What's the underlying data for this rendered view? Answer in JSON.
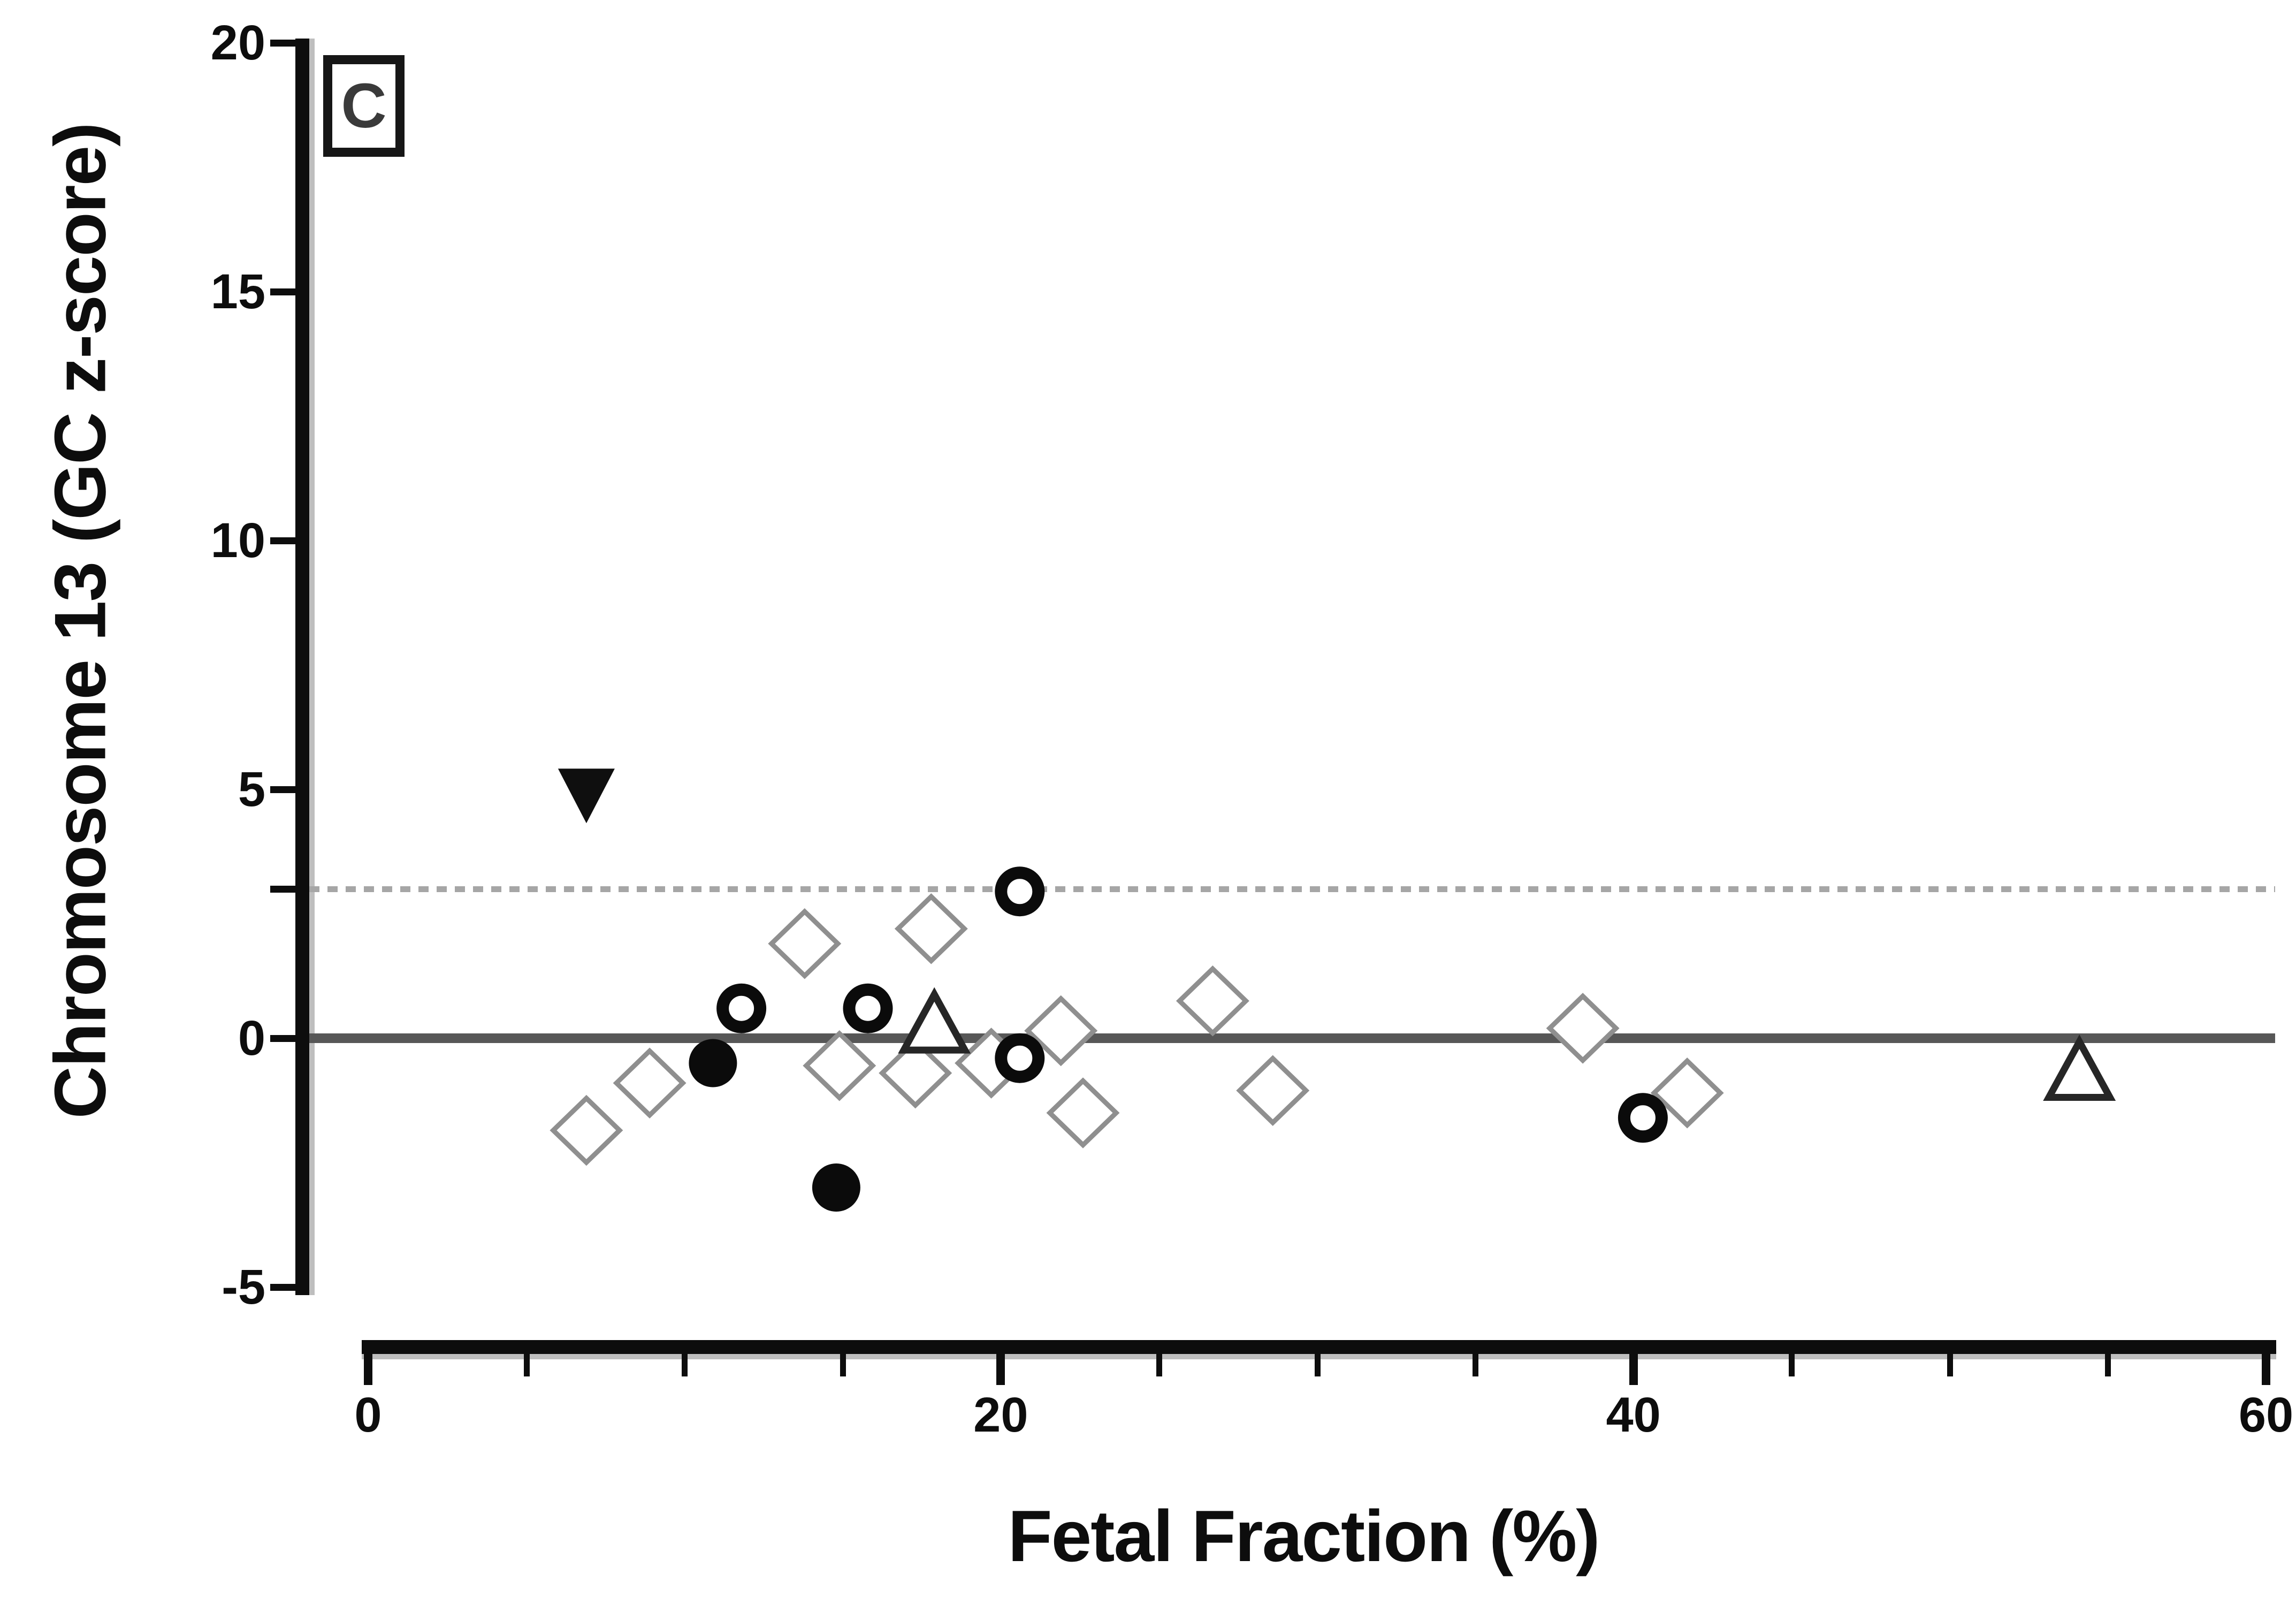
{
  "figure": {
    "panel_label": "C",
    "background_color": "#ffffff",
    "axis_color": "#0d0d0d",
    "text_color": "#0d0d0d"
  },
  "chart_data": {
    "type": "scatter",
    "title": "",
    "xlabel": "Fetal Fraction (%)",
    "ylabel": "Chromosome 13 (GC z-score)",
    "xlim": [
      0,
      60
    ],
    "ylim": [
      -5,
      20
    ],
    "x_major_ticks": [
      0,
      20,
      40,
      60
    ],
    "x_minor_ticks": [
      5,
      10,
      15,
      25,
      30,
      35,
      45,
      50,
      55
    ],
    "y_labeled_ticks": [
      20,
      15,
      10,
      5,
      0,
      -5
    ],
    "y_unlabeled_ticks": [
      3
    ],
    "grid": false,
    "legend_position": "none",
    "reference_lines": [
      {
        "y": 3,
        "style": "dotted",
        "color": "#a6a6a6"
      },
      {
        "y": 0,
        "style": "solid",
        "color": "#575757"
      }
    ],
    "series": [
      {
        "name": "filled-down-triangle",
        "marker": "triangle-down-filled",
        "color": "#0f0f0f",
        "points": [
          [
            6.9,
            4.9
          ]
        ]
      },
      {
        "name": "open-circle",
        "marker": "circle-open",
        "color": "#0b0b0b",
        "points": [
          [
            11.8,
            0.6
          ],
          [
            15.8,
            0.6
          ],
          [
            20.6,
            2.95
          ],
          [
            20.6,
            -0.4
          ],
          [
            40.3,
            -1.6
          ]
        ]
      },
      {
        "name": "filled-circle",
        "marker": "circle-filled",
        "color": "#0b0b0b",
        "points": [
          [
            10.9,
            -0.5
          ],
          [
            14.8,
            -3.0
          ]
        ]
      },
      {
        "name": "open-triangle",
        "marker": "triangle-up-open",
        "color": "#262626",
        "points": [
          [
            17.9,
            0.3
          ],
          [
            54.1,
            -0.65
          ]
        ]
      },
      {
        "name": "open-diamond",
        "marker": "diamond-open",
        "color": "#8f8f8f",
        "points": [
          [
            6.9,
            -1.85
          ],
          [
            8.9,
            -0.9
          ],
          [
            13.8,
            1.9
          ],
          [
            14.9,
            -0.55
          ],
          [
            17.3,
            -0.7
          ],
          [
            17.8,
            2.2
          ],
          [
            19.7,
            -0.5
          ],
          [
            21.9,
            0.15
          ],
          [
            22.6,
            -1.5
          ],
          [
            26.7,
            0.75
          ],
          [
            28.6,
            -1.05
          ],
          [
            38.4,
            0.2
          ],
          [
            41.7,
            -1.1
          ]
        ]
      }
    ]
  }
}
